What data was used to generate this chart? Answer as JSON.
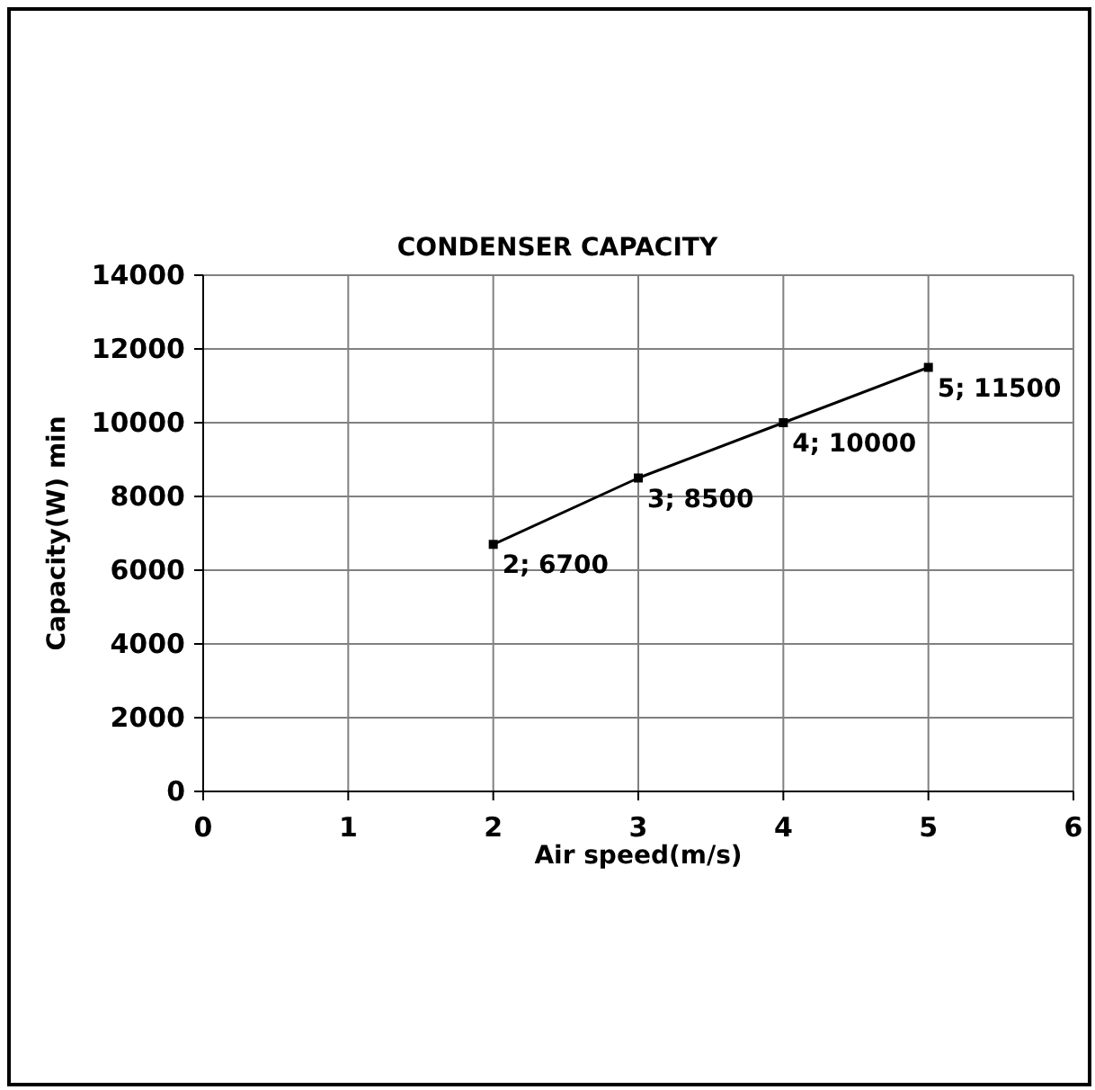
{
  "chart_data": {
    "type": "line",
    "title": "CONDENSER CAPACITY",
    "xlabel": "Air speed(m/s)",
    "ylabel": "Capacity(W)  min",
    "x": [
      2,
      3,
      4,
      5
    ],
    "series": [
      {
        "color": "#000000",
        "values": [
          6700,
          8500,
          10000,
          11500
        ],
        "value_labels": [
          "2; 6700",
          "3; 8500",
          "4; 10000",
          "5; 11500"
        ]
      }
    ],
    "xlim": [
      0,
      6
    ],
    "xticks": [
      0,
      1,
      2,
      3,
      4,
      5,
      6
    ],
    "ylim": [
      0,
      14000
    ],
    "yticks": [
      0,
      2000,
      4000,
      6000,
      8000,
      10000,
      12000,
      14000
    ],
    "grid": true,
    "marker": "square",
    "line_style": "solid"
  }
}
